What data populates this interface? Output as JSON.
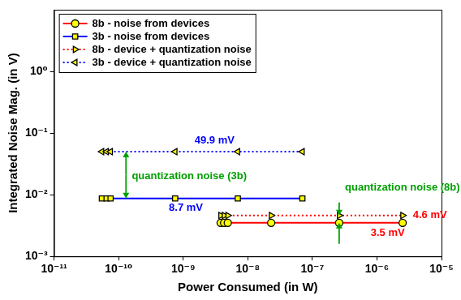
{
  "chart_data": {
    "type": "line",
    "x_label": "Power Consumed (in W)",
    "y_label": "Integrated Noise Mag. (in V)",
    "log": true,
    "grid": false,
    "legend": "upper left",
    "xlim": [
      1e-11,
      1e-05
    ],
    "xticks": [
      {
        "value": 1e-11,
        "label": "10⁻¹¹"
      },
      {
        "value": 1e-10,
        "label": "10⁻¹⁰"
      },
      {
        "value": 1e-09,
        "label": "10⁻⁹"
      },
      {
        "value": 1e-08,
        "label": "10⁻⁸"
      },
      {
        "value": 1e-07,
        "label": "10⁻⁷"
      },
      {
        "value": 1e-06,
        "label": "10⁻⁶"
      },
      {
        "value": 1e-05,
        "label": "10⁻⁵"
      }
    ],
    "ylim": [
      0.001,
      10
    ],
    "yticks": [
      {
        "value": 0.001,
        "label": "10⁻³"
      },
      {
        "value": 0.01,
        "label": "10⁻²"
      },
      {
        "value": 0.1,
        "label": "10⁻¹"
      },
      {
        "value": 1,
        "label": "10⁰"
      }
    ],
    "series": [
      {
        "name": "8b - noise from devices",
        "color": "#ff0000",
        "marker": "circle",
        "line_style": "solid",
        "x": [
          3.8e-09,
          4.3e-09,
          4.9e-09,
          2.3e-08,
          2.6e-07,
          2.5e-06
        ],
        "values": [
          0.0035,
          0.0035,
          0.0035,
          0.0035,
          0.0035,
          0.0035
        ]
      },
      {
        "name": "3b - noise from devices",
        "color": "#0000ff",
        "marker": "square",
        "line_style": "solid",
        "x": [
          5.5e-11,
          6.5e-11,
          7.5e-11,
          7.5e-10,
          7e-09,
          7e-08
        ],
        "values": [
          0.0087,
          0.0087,
          0.0087,
          0.0087,
          0.0087,
          0.0087
        ]
      },
      {
        "name": "8b - device + quantization noise",
        "color": "#ff0000",
        "marker": "triangle-right",
        "line_style": "dotted",
        "x": [
          3.8e-09,
          4.3e-09,
          4.9e-09,
          2.3e-08,
          2.6e-07,
          2.5e-06
        ],
        "values": [
          0.0046,
          0.0046,
          0.0046,
          0.0046,
          0.0046,
          0.0046
        ]
      },
      {
        "name": "3b - device + quantization noise",
        "color": "#0000ff",
        "marker": "triangle-left",
        "line_style": "dotted",
        "x": [
          5.5e-11,
          6.5e-11,
          7.5e-11,
          7.5e-10,
          7e-09,
          7e-08
        ],
        "values": [
          0.0499,
          0.0499,
          0.0499,
          0.0499,
          0.0499,
          0.0499
        ]
      }
    ],
    "annotations": [
      {
        "text": "49.9 mV",
        "x": 1.5e-09,
        "y": 0.075,
        "color": "#0000ff"
      },
      {
        "text": "8.7 mV",
        "x": 6e-10,
        "y": 0.0062,
        "color": "#0000ff"
      },
      {
        "text": "quantization noise (3b)",
        "x": 1.6e-10,
        "y": 0.02,
        "color": "#00a000"
      },
      {
        "text": "quantization noise (8b)",
        "x": 3.2e-07,
        "y": 0.013,
        "color": "#00a000"
      },
      {
        "text": "4.6 mV",
        "x": 3.6e-06,
        "y": 0.0046,
        "color": "#ff0000"
      },
      {
        "text": "3.5 mV",
        "x": 8e-07,
        "y": 0.0024,
        "color": "#ff0000"
      }
    ],
    "arrows": [
      {
        "x": 1.3e-10,
        "from": 0.021,
        "to": 0.0499,
        "color": "#00a000"
      },
      {
        "x": 1.3e-10,
        "from": 0.021,
        "to": 0.0087,
        "color": "#00a000"
      },
      {
        "x": 2.6e-07,
        "from": 0.0075,
        "to": 0.0046,
        "color": "#00a000"
      },
      {
        "x": 2.6e-07,
        "from": 0.0016,
        "to": 0.0035,
        "color": "#00a000"
      }
    ]
  }
}
